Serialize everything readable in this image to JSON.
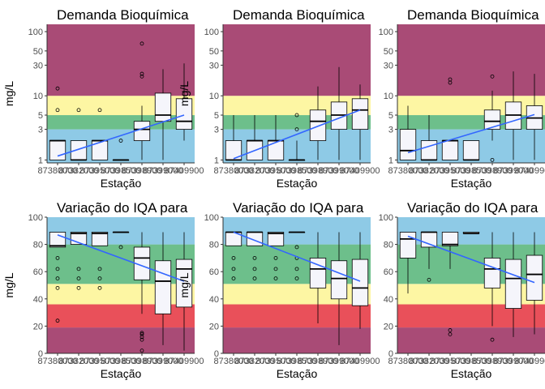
{
  "chart_data": [
    {
      "type": "boxplot",
      "title": "Demanda Bioquímica",
      "xlabel": "Estação",
      "ylabel": "mg/L",
      "y_scale": "log10",
      "ylim": [
        0.9,
        130
      ],
      "y_ticks": [
        1,
        3,
        5,
        10,
        30,
        50,
        100
      ],
      "categories": [
        "87380000",
        "87382000",
        "87395000",
        "87398500",
        "87398900",
        "87399000",
        "87409900"
      ],
      "bands": [
        {
          "from": 0.9,
          "to": 3,
          "color": "#8ecae6"
        },
        {
          "from": 3,
          "to": 5,
          "color": "#6dbf8b"
        },
        {
          "from": 5,
          "to": 10,
          "color": "#fdf6a3"
        },
        {
          "from": 10,
          "to": 130,
          "color": "#a94b76"
        }
      ],
      "boxes": [
        {
          "min": 1,
          "q1": 1,
          "median": 2,
          "q3": 2,
          "max": 2,
          "outliers": [
            6,
            13
          ]
        },
        {
          "min": 1,
          "q1": 1,
          "median": 1,
          "q3": 2,
          "max": 2,
          "outliers": [
            6
          ]
        },
        {
          "min": 1,
          "q1": 1,
          "median": 2,
          "q3": 2,
          "max": 2,
          "outliers": [
            6
          ]
        },
        {
          "min": 1,
          "q1": 1,
          "median": 1,
          "q3": 1,
          "max": 1,
          "outliers": [
            2
          ]
        },
        {
          "min": 1,
          "q1": 2,
          "median": 3,
          "q3": 4,
          "max": 7,
          "outliers": [
            20,
            22,
            65
          ]
        },
        {
          "min": 1,
          "q1": 4,
          "median": 5,
          "q3": 11,
          "max": 26,
          "outliers": []
        },
        {
          "min": 2,
          "q1": 3,
          "median": 4,
          "q3": 9,
          "max": 32,
          "outliers": []
        }
      ],
      "trend": {
        "start": 1.15,
        "end": 5
      }
    },
    {
      "type": "boxplot",
      "title": "Demanda Bioquímica",
      "xlabel": "Estação",
      "ylabel": "mg/L",
      "y_scale": "log10",
      "ylim": [
        0.9,
        130
      ],
      "y_ticks": [
        1,
        3,
        5,
        10,
        30,
        50,
        100
      ],
      "categories": [
        "87380000",
        "87382000",
        "87395000",
        "87398500",
        "87398900",
        "87399000",
        "87409900"
      ],
      "bands": [
        {
          "from": 0.9,
          "to": 3,
          "color": "#8ecae6"
        },
        {
          "from": 3,
          "to": 5,
          "color": "#6dbf8b"
        },
        {
          "from": 5,
          "to": 10,
          "color": "#fdf6a3"
        },
        {
          "from": 10,
          "to": 130,
          "color": "#a94b76"
        }
      ],
      "boxes": [
        {
          "min": 1,
          "q1": 1,
          "median": 1,
          "q3": 2,
          "max": 5,
          "outliers": []
        },
        {
          "min": 1,
          "q1": 1,
          "median": 2,
          "q3": 2,
          "max": 5,
          "outliers": []
        },
        {
          "min": 1,
          "q1": 1,
          "median": 2,
          "q3": 2,
          "max": 5,
          "outliers": []
        },
        {
          "min": 1,
          "q1": 1,
          "median": 1,
          "q3": 1,
          "max": 2,
          "outliers": [
            3,
            5
          ]
        },
        {
          "min": 1,
          "q1": 2,
          "median": 4,
          "q3": 6,
          "max": 14,
          "outliers": []
        },
        {
          "min": 1,
          "q1": 3,
          "median": 5,
          "q3": 8,
          "max": 28,
          "outliers": []
        },
        {
          "min": 1,
          "q1": 3,
          "median": 6,
          "q3": 9,
          "max": 15,
          "outliers": []
        }
      ],
      "trend": {
        "start": 1.05,
        "end": 6
      }
    },
    {
      "type": "boxplot",
      "title": "Demanda Bioquímica",
      "xlabel": "Estação",
      "ylabel": "",
      "y_scale": "log10",
      "ylim": [
        0.9,
        130
      ],
      "y_ticks": [
        1,
        3,
        5,
        10,
        30,
        50,
        100
      ],
      "categories": [
        "87380000",
        "87382000",
        "87395000",
        "87398500",
        "87398900",
        "87399000",
        "87409900"
      ],
      "bands": [
        {
          "from": 0.9,
          "to": 3,
          "color": "#8ecae6"
        },
        {
          "from": 3,
          "to": 5,
          "color": "#6dbf8b"
        },
        {
          "from": 5,
          "to": 10,
          "color": "#fdf6a3"
        },
        {
          "from": 10,
          "to": 130,
          "color": "#a94b76"
        }
      ],
      "boxes": [
        {
          "min": 1,
          "q1": 1,
          "median": 1.4,
          "q3": 3,
          "max": 7,
          "outliers": []
        },
        {
          "min": 1,
          "q1": 1,
          "median": 1,
          "q3": 2,
          "max": 5,
          "outliers": []
        },
        {
          "min": 1,
          "q1": 1,
          "median": 2,
          "q3": 2,
          "max": 2,
          "outliers": [
            16,
            18
          ]
        },
        {
          "min": 1,
          "q1": 1,
          "median": 1,
          "q3": 2,
          "max": 2,
          "outliers": []
        },
        {
          "min": 2,
          "q1": 3,
          "median": 4,
          "q3": 6,
          "max": 12,
          "outliers": [
            1,
            20
          ]
        },
        {
          "min": 1,
          "q1": 3,
          "median": 5,
          "q3": 8,
          "max": 24,
          "outliers": []
        },
        {
          "min": 1,
          "q1": 3,
          "median": 4.5,
          "q3": 7,
          "max": 22,
          "outliers": []
        }
      ],
      "trend": {
        "start": 1.3,
        "end": 5.1
      }
    },
    {
      "type": "boxplot",
      "title": "Variação do IQA para",
      "xlabel": "Estação",
      "ylabel": "mg/L",
      "y_scale": "linear",
      "ylim": [
        0,
        100
      ],
      "y_ticks": [
        0,
        20,
        40,
        60,
        80,
        100
      ],
      "categories": [
        "87380000",
        "87382000",
        "87395000",
        "87398500",
        "87398900",
        "87399000",
        "87409900"
      ],
      "bands": [
        {
          "from": 0,
          "to": 19,
          "color": "#a94b76"
        },
        {
          "from": 19,
          "to": 36,
          "color": "#e9505a"
        },
        {
          "from": 36,
          "to": 51,
          "color": "#fdf6a3"
        },
        {
          "from": 51,
          "to": 80,
          "color": "#6dbf8b"
        },
        {
          "from": 80,
          "to": 100,
          "color": "#8ecae6"
        }
      ],
      "boxes": [
        {
          "min": 78,
          "q1": 78,
          "median": 79,
          "q3": 89,
          "max": 89,
          "outliers": [
            24,
            48,
            55,
            62,
            70
          ]
        },
        {
          "min": 80,
          "q1": 80,
          "median": 88,
          "q3": 89,
          "max": 89,
          "outliers": [
            48,
            55,
            62
          ]
        },
        {
          "min": 79,
          "q1": 79,
          "median": 88,
          "q3": 89,
          "max": 89,
          "outliers": [
            48,
            55,
            62
          ]
        },
        {
          "min": 89,
          "q1": 89,
          "median": 89,
          "q3": 89,
          "max": 89,
          "outliers": [
            78
          ]
        },
        {
          "min": 29,
          "q1": 54,
          "median": 70,
          "q3": 78,
          "max": 89,
          "outliers": [
            2,
            10,
            12,
            14,
            15
          ]
        },
        {
          "min": 6,
          "q1": 29,
          "median": 53,
          "q3": 68,
          "max": 89,
          "outliers": []
        },
        {
          "min": 2,
          "q1": 34,
          "median": 62,
          "q3": 69,
          "max": 89,
          "outliers": []
        }
      ],
      "trend": {
        "start": 87,
        "end": 53
      }
    },
    {
      "type": "boxplot",
      "title": "Variação do IQA para",
      "xlabel": "Estação",
      "ylabel": "mg/L",
      "y_scale": "linear",
      "ylim": [
        0,
        100
      ],
      "y_ticks": [
        0,
        20,
        40,
        60,
        80,
        100
      ],
      "categories": [
        "87380000",
        "87382000",
        "87395000",
        "87398500",
        "87398900",
        "87399000",
        "87409900"
      ],
      "bands": [
        {
          "from": 0,
          "to": 19,
          "color": "#a94b76"
        },
        {
          "from": 19,
          "to": 36,
          "color": "#e9505a"
        },
        {
          "from": 36,
          "to": 51,
          "color": "#fdf6a3"
        },
        {
          "from": 51,
          "to": 80,
          "color": "#6dbf8b"
        },
        {
          "from": 80,
          "to": 100,
          "color": "#8ecae6"
        }
      ],
      "boxes": [
        {
          "min": 79,
          "q1": 79,
          "median": 89,
          "q3": 89,
          "max": 89,
          "outliers": [
            55,
            62,
            70
          ]
        },
        {
          "min": 79,
          "q1": 79,
          "median": 89,
          "q3": 89,
          "max": 89,
          "outliers": [
            55,
            62,
            70
          ]
        },
        {
          "min": 79,
          "q1": 79,
          "median": 88,
          "q3": 89,
          "max": 89,
          "outliers": [
            55,
            62,
            70
          ]
        },
        {
          "min": 89,
          "q1": 89,
          "median": 89,
          "q3": 89,
          "max": 89,
          "outliers": [
            55,
            62,
            70,
            78
          ]
        },
        {
          "min": 22,
          "q1": 48,
          "median": 62,
          "q3": 70,
          "max": 89,
          "outliers": []
        },
        {
          "min": 6,
          "q1": 40,
          "median": 55,
          "q3": 68,
          "max": 89,
          "outliers": []
        },
        {
          "min": 18,
          "q1": 35,
          "median": 48,
          "q3": 69,
          "max": 89,
          "outliers": []
        }
      ],
      "trend": {
        "start": 89,
        "end": 53
      }
    },
    {
      "type": "boxplot",
      "title": "Variação do IQA para",
      "xlabel": "Estação",
      "ylabel": "",
      "y_scale": "linear",
      "ylim": [
        0,
        100
      ],
      "y_ticks": [
        0,
        20,
        40,
        60,
        80,
        100
      ],
      "categories": [
        "87380000",
        "87382000",
        "87395000",
        "87398500",
        "87398900",
        "87399000",
        "87409900"
      ],
      "bands": [
        {
          "from": 0,
          "to": 19,
          "color": "#a94b76"
        },
        {
          "from": 19,
          "to": 36,
          "color": "#e9505a"
        },
        {
          "from": 36,
          "to": 51,
          "color": "#fdf6a3"
        },
        {
          "from": 51,
          "to": 80,
          "color": "#6dbf8b"
        },
        {
          "from": 80,
          "to": 100,
          "color": "#8ecae6"
        }
      ],
      "boxes": [
        {
          "min": 44,
          "q1": 70,
          "median": 84,
          "q3": 89,
          "max": 89,
          "outliers": []
        },
        {
          "min": 62,
          "q1": 78,
          "median": 89,
          "q3": 89,
          "max": 89,
          "outliers": [
            54
          ]
        },
        {
          "min": 62,
          "q1": 79,
          "median": 80,
          "q3": 89,
          "max": 89,
          "outliers": [
            14,
            17
          ]
        },
        {
          "min": 88,
          "q1": 88,
          "median": 88,
          "q3": 89,
          "max": 89,
          "outliers": []
        },
        {
          "min": 20,
          "q1": 48,
          "median": 62,
          "q3": 70,
          "max": 89,
          "outliers": [
            10
          ]
        },
        {
          "min": 12,
          "q1": 33,
          "median": 55,
          "q3": 69,
          "max": 89,
          "outliers": []
        },
        {
          "min": 14,
          "q1": 39,
          "median": 58,
          "q3": 72,
          "max": 89,
          "outliers": []
        }
      ],
      "trend": {
        "start": 86,
        "end": 52
      }
    }
  ]
}
